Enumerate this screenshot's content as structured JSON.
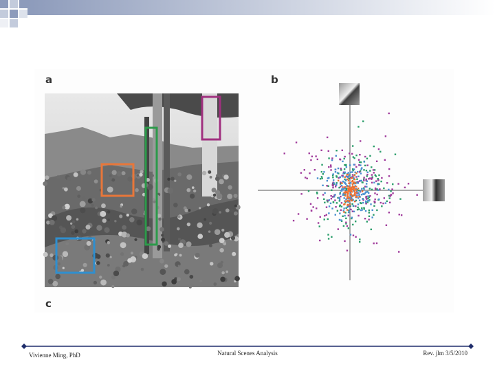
{
  "figure": {
    "panels": [
      "a",
      "b",
      "c"
    ]
  },
  "footer": {
    "left": "Vivienne Ming, PhD",
    "center": "Natural Scenes Analysis",
    "right": "Rev. jlm 3/5/2010"
  }
}
